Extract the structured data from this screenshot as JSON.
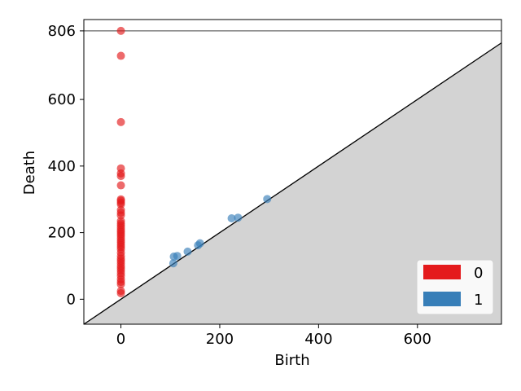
{
  "chart_data": {
    "type": "scatter",
    "title": "",
    "xlabel": "Birth",
    "ylabel": "Death",
    "xlim": [
      -75,
      770
    ],
    "ylim": [
      -75,
      840
    ],
    "x_ticks": [
      0,
      200,
      400,
      600
    ],
    "y_ticks": [
      0,
      200,
      400,
      600,
      806
    ],
    "infinity_line": 806,
    "diagonal": true,
    "grid": false,
    "legend_position": "bottom-right",
    "series": [
      {
        "name": "0",
        "color": "#e41a1c",
        "points": [
          [
            0,
            806
          ],
          [
            0,
            731
          ],
          [
            0,
            532
          ],
          [
            0,
            393
          ],
          [
            0,
            378
          ],
          [
            0,
            370
          ],
          [
            0,
            342
          ],
          [
            0,
            300
          ],
          [
            0,
            296
          ],
          [
            0,
            290
          ],
          [
            0,
            285
          ],
          [
            0,
            268
          ],
          [
            0,
            260
          ],
          [
            0,
            252
          ],
          [
            0,
            235
          ],
          [
            0,
            228
          ],
          [
            0,
            222
          ],
          [
            0,
            215
          ],
          [
            0,
            208
          ],
          [
            0,
            202
          ],
          [
            0,
            196
          ],
          [
            0,
            190
          ],
          [
            0,
            183
          ],
          [
            0,
            176
          ],
          [
            0,
            170
          ],
          [
            0,
            163
          ],
          [
            0,
            157
          ],
          [
            0,
            150
          ],
          [
            0,
            140
          ],
          [
            0,
            130
          ],
          [
            0,
            122
          ],
          [
            0,
            115
          ],
          [
            0,
            108
          ],
          [
            0,
            100
          ],
          [
            0,
            93
          ],
          [
            0,
            86
          ],
          [
            0,
            78
          ],
          [
            0,
            70
          ],
          [
            0,
            60
          ],
          [
            0,
            52
          ],
          [
            0,
            45
          ],
          [
            0,
            25
          ],
          [
            0,
            18
          ]
        ]
      },
      {
        "name": "1",
        "color": "#377eb8",
        "points": [
          [
            106,
            108
          ],
          [
            107,
            128
          ],
          [
            114,
            130
          ],
          [
            135,
            143
          ],
          [
            156,
            162
          ],
          [
            160,
            168
          ],
          [
            224,
            243
          ],
          [
            237,
            245
          ],
          [
            296,
            301
          ]
        ]
      }
    ]
  }
}
